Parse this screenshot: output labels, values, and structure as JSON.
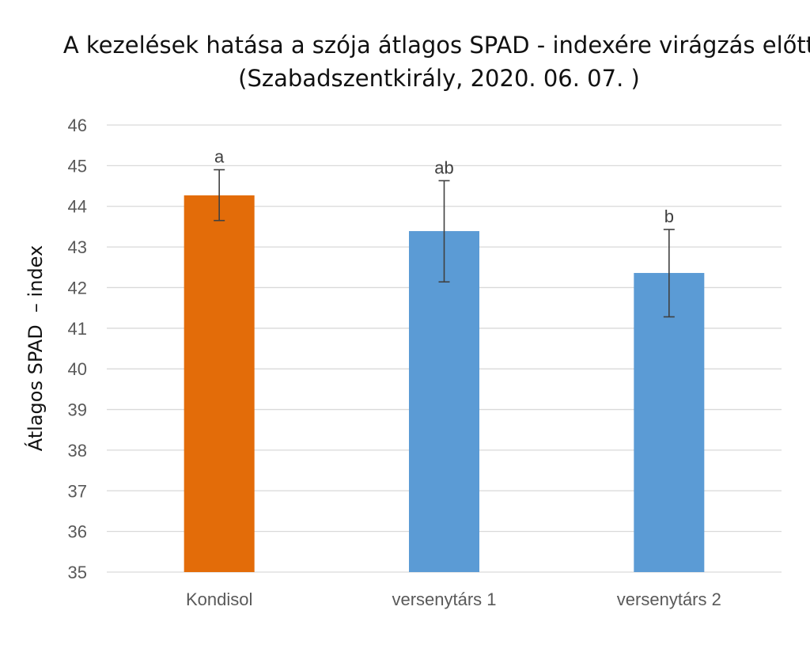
{
  "chart_data": {
    "type": "bar",
    "title": "A kezelések hatása a szója átlagos SPAD - indexére virágzás előtt",
    "subtitle": "(Szabadszentkirály, 2020. 06. 07. )",
    "xlabel": "",
    "ylabel": "Átlagos SPAD  – index",
    "categories": [
      "Kondisol",
      "versenytárs 1",
      "versenytárs 2"
    ],
    "values": [
      44.27,
      43.39,
      42.36
    ],
    "error_low": [
      43.65,
      42.14,
      41.28
    ],
    "error_high": [
      44.9,
      44.63,
      43.43
    ],
    "significance_labels": [
      "a",
      "ab",
      "b"
    ],
    "bar_colors": [
      "#E36C09",
      "#5B9BD5",
      "#5B9BD5"
    ],
    "ylim": [
      35,
      46
    ],
    "yticks": [
      "35",
      "36",
      "37",
      "38",
      "39",
      "40",
      "41",
      "42",
      "43",
      "44",
      "45",
      "46"
    ],
    "grid": true,
    "legend": "none"
  }
}
